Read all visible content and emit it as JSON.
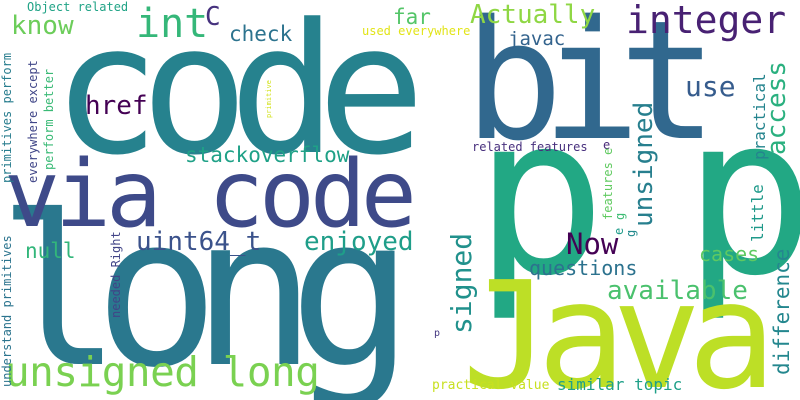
{
  "cloud": {
    "words": [
      {
        "text": "code",
        "color": "#26828e"
      },
      {
        "text": "bit",
        "color": "#31688e"
      },
      {
        "text": "p p",
        "color": "#22a884"
      },
      {
        "text": "long",
        "color": "#2a788e"
      },
      {
        "text": "Java",
        "color": "#bddf26"
      },
      {
        "text": "via code",
        "color": "#3e4a89"
      },
      {
        "text": "unsigned long",
        "color": "#7ad151"
      },
      {
        "text": "integer",
        "color": "#482173"
      },
      {
        "text": "int",
        "color": "#35b779"
      },
      {
        "text": "C",
        "color": "#46327e"
      },
      {
        "text": "know",
        "color": "#6ccd5a"
      },
      {
        "text": "check",
        "color": "#2c738e"
      },
      {
        "text": "far",
        "color": "#54c568"
      },
      {
        "text": "Actually",
        "color": "#8fd744"
      },
      {
        "text": "javac",
        "color": "#33638d"
      },
      {
        "text": "use",
        "color": "#365c8d"
      },
      {
        "text": "unsigned",
        "color": "#277f8e"
      },
      {
        "text": "access",
        "color": "#2ab07f"
      },
      {
        "text": "href",
        "color": "#440154"
      },
      {
        "text": "practical",
        "color": "#25848e"
      },
      {
        "text": "stackoverflow",
        "color": "#1fa187"
      },
      {
        "text": "uint64_t",
        "color": "#3b528b"
      },
      {
        "text": "enjoyed",
        "color": "#1f9e89"
      },
      {
        "text": "Now",
        "color": "#440154"
      },
      {
        "text": "null",
        "color": "#32b67a"
      },
      {
        "text": "signed",
        "color": "#21918c"
      },
      {
        "text": "questions",
        "color": "#2c728e"
      },
      {
        "text": "cases",
        "color": "#5ec962"
      },
      {
        "text": "available",
        "color": "#4ac16d"
      },
      {
        "text": "difference",
        "color": "#24878e"
      },
      {
        "text": "little",
        "color": "#1f9a8a"
      },
      {
        "text": "similar topic",
        "color": "#1fa088"
      },
      {
        "text": "practical value",
        "color": "#c8e020"
      },
      {
        "text": "Object related",
        "color": "#20a386"
      },
      {
        "text": "used everywhere",
        "color": "#e2e418"
      },
      {
        "text": "primitives perform",
        "color": "#287d8e"
      },
      {
        "text": "everywhere except",
        "color": "#404688"
      },
      {
        "text": "perform better",
        "color": "#3aba76"
      },
      {
        "text": "understand primitives",
        "color": "#2b748e"
      },
      {
        "text": "needed Right",
        "color": "#414487"
      },
      {
        "text": "primitive",
        "color": "#d2e21b"
      },
      {
        "text": "related features",
        "color": "#472f7d"
      },
      {
        "text": "features e",
        "color": "#60ca60"
      },
      {
        "text": "e",
        "color": "#482878"
      },
      {
        "text": "g",
        "color": "#3dbc74"
      },
      {
        "text": "e",
        "color": "#1e9c89"
      },
      {
        "text": "g",
        "color": "#238a8d"
      },
      {
        "text": "p",
        "color": "#453882"
      }
    ]
  }
}
